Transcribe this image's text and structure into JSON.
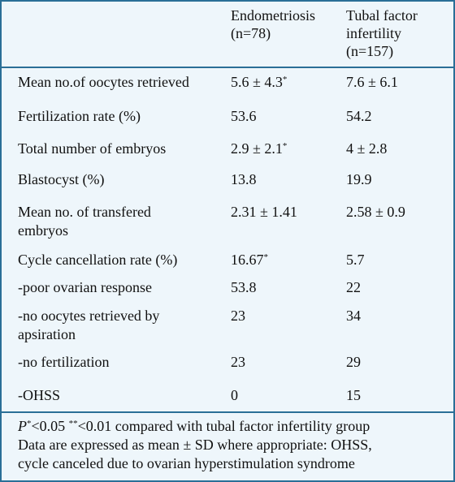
{
  "columns": {
    "col2": [
      "Endometriosis",
      "(n=78)"
    ],
    "col3": [
      "Tubal factor",
      "infertility",
      "(n=157)"
    ]
  },
  "rows": [
    {
      "label": [
        "Mean no.of oocytes retrieved"
      ],
      "v1": "5.6 ± 4.3",
      "v1_sup": "*",
      "v2": "7.6 ± 6.1"
    },
    {
      "label": [
        "Fertilization rate (%)"
      ],
      "v1": "53.6",
      "v1_sup": "",
      "v2": "54.2"
    },
    {
      "label": [
        "Total number of embryos"
      ],
      "v1": "2.9 ± 2.1",
      "v1_sup": "*",
      "v2": "4 ± 2.8"
    },
    {
      "label": [
        "Blastocyst (%)"
      ],
      "v1": "13.8",
      "v1_sup": "",
      "v2": "19.9"
    },
    {
      "label": [
        "Mean no. of transfered",
        "embryos"
      ],
      "v1": "2.31 ± 1.41",
      "v1_sup": "",
      "v2": "2.58 ± 0.9"
    },
    {
      "label": [
        "Cycle cancellation rate (%)"
      ],
      "v1": "16.67",
      "v1_sup": "*",
      "v2": "5.7"
    },
    {
      "label": [
        "-poor ovarian response"
      ],
      "v1": "53.8",
      "v1_sup": "",
      "v2": "22"
    },
    {
      "label": [
        "-no oocytes retrieved by",
        "apsiration"
      ],
      "v1": "23",
      "v1_sup": "",
      "v2": "34"
    },
    {
      "label": [
        "-no fertilization"
      ],
      "v1": "23",
      "v1_sup": "",
      "v2": "29"
    },
    {
      "label": [
        "-OHSS"
      ],
      "v1": " 0",
      "v1_sup": "",
      "v2": "15"
    }
  ],
  "footnote": {
    "p": "P",
    "sup1": "*",
    "t1": "<0.05 ",
    "sup2": "**",
    "t2": "<0.01 compared with tubal factor infertility group",
    "line2": "Data are expressed as mean ± SD where appropriate: OHSS,",
    "line3": "cycle canceled due to ovarian hyperstimulation syndrome"
  }
}
